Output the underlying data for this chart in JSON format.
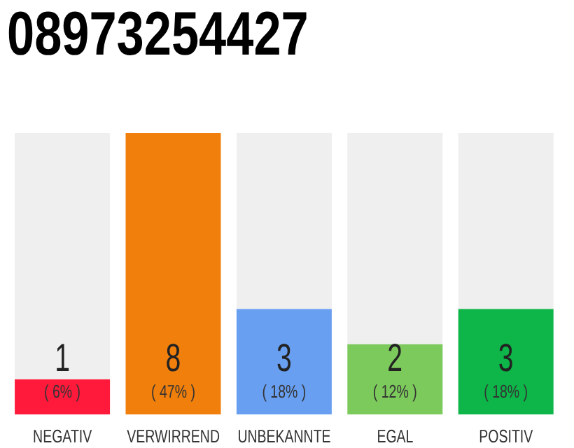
{
  "chart_data": {
    "type": "bar",
    "title": "08973254427",
    "categories": [
      "NEGATIV",
      "VERWIRREND",
      "UNBEKANNTE",
      "EGAL",
      "POSITIV"
    ],
    "stacked": true,
    "series": [
      {
        "colors": [
          "#ff1a3c",
          "#f07f0c",
          "#689ff0",
          "#7cc95c",
          "#0eb548"
        ],
        "values": [
          1,
          8,
          3,
          2,
          3
        ],
        "value_labels": [
          "1",
          "8",
          "3",
          "2",
          "3"
        ]
      },
      {
        "color": "#efefef",
        "values": [
          7,
          0,
          5,
          6,
          5
        ]
      }
    ],
    "annotations": [
      "( 6% )",
      "( 47% )",
      "( 18% )",
      "( 12% )",
      "( 18% )"
    ],
    "ylim": [
      0,
      8
    ],
    "tick_labels": "x",
    "grid": false,
    "legend": false
  }
}
